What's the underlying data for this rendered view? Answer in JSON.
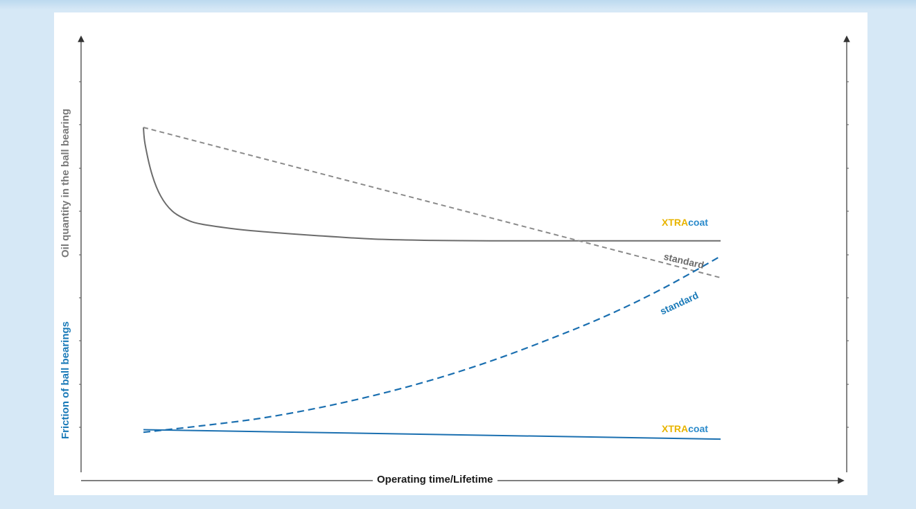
{
  "chart_data": {
    "type": "line",
    "title": "",
    "xlabel": "Operating time/Lifetime",
    "ylabel_left_top": "Oil quantity in the ball bearing",
    "ylabel_left_bottom": "Friction of ball bearings",
    "x_range": [
      0,
      100
    ],
    "y_range": [
      0,
      100
    ],
    "axes": {
      "ticks_numeric": false,
      "grid": false,
      "arrows": true,
      "right_axis": true
    },
    "series": [
      {
        "name": "XTRAcoat",
        "group": "oil",
        "style": "solid",
        "color": "#6b6b6b",
        "x": [
          0,
          0.3,
          1.5,
          3,
          5,
          7.5,
          10,
          15,
          20,
          30,
          40,
          50,
          60,
          70,
          80,
          90,
          100
        ],
        "y": [
          80,
          76,
          69,
          64,
          60.5,
          58.5,
          57.5,
          56.5,
          55.8,
          54.8,
          54.0,
          53.7,
          53.6,
          53.6,
          53.6,
          53.6,
          53.6
        ]
      },
      {
        "name": "standard",
        "group": "oil",
        "style": "dashed",
        "color": "#8a8a8a",
        "x": [
          0,
          100
        ],
        "y": [
          80,
          45
        ]
      },
      {
        "name": "standard",
        "group": "friction",
        "style": "dashed",
        "color": "#1a6fb0",
        "x": [
          0,
          10,
          20,
          30,
          40,
          50,
          60,
          70,
          80,
          90,
          100
        ],
        "y": [
          9,
          10.5,
          12.2,
          14.6,
          17.6,
          21.2,
          25.5,
          30.5,
          36.0,
          42.5,
          50
        ]
      },
      {
        "name": "XTRAcoat",
        "group": "friction",
        "style": "solid",
        "color": "#1a6fb0",
        "x": [
          0,
          100
        ],
        "y": [
          9.6,
          7.4
        ]
      }
    ],
    "annotations": {
      "xtra_part": "XTRA",
      "coat_part": "coat",
      "standard": "standard"
    }
  },
  "colors": {
    "gray_series": "#6b6b6b",
    "blue_series": "#1a6fb0",
    "xtra_yellow": "#e8b400",
    "coat_blue": "#2a8acb",
    "background": "#d6e8f6"
  }
}
